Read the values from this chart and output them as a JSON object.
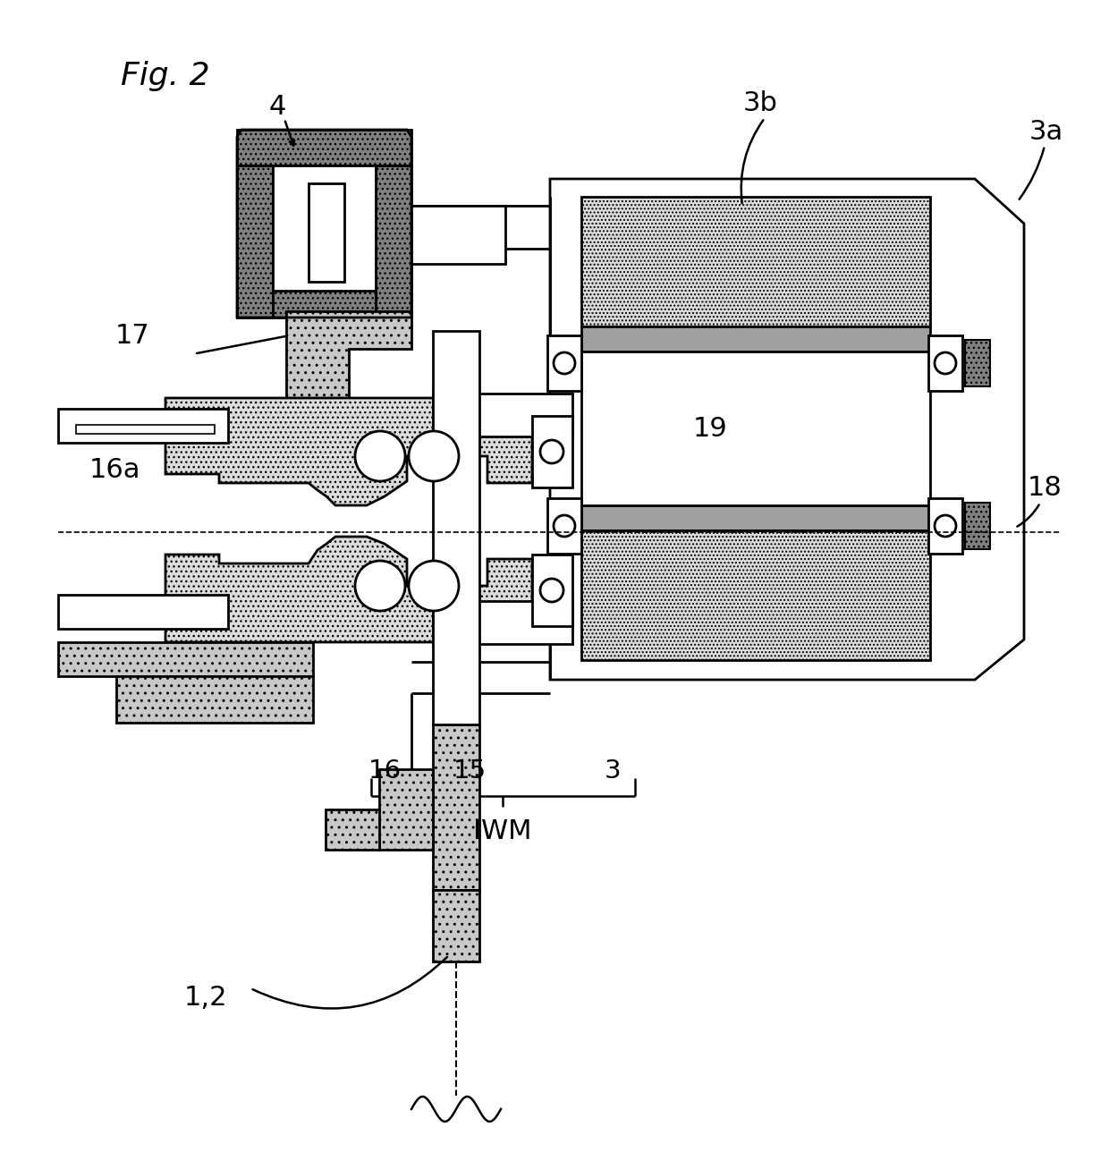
{
  "title": "Fig. 2",
  "background": "#ffffff",
  "lw": 2.0,
  "colors": {
    "white": "#ffffff",
    "light_dot": "#d8d8d8",
    "mid_gray": "#a8a8a8",
    "dark_gray": "#909090",
    "dot_light": "#e0e0e0"
  },
  "labels": {
    "fig": "Fig. 2",
    "4": "4",
    "17": "17",
    "16a": "16a",
    "3b": "3b",
    "3a": "3a",
    "19": "19",
    "18": "18",
    "16": "16",
    "15": "15",
    "3": "3",
    "IWM": "IWM",
    "12": "1,2"
  }
}
